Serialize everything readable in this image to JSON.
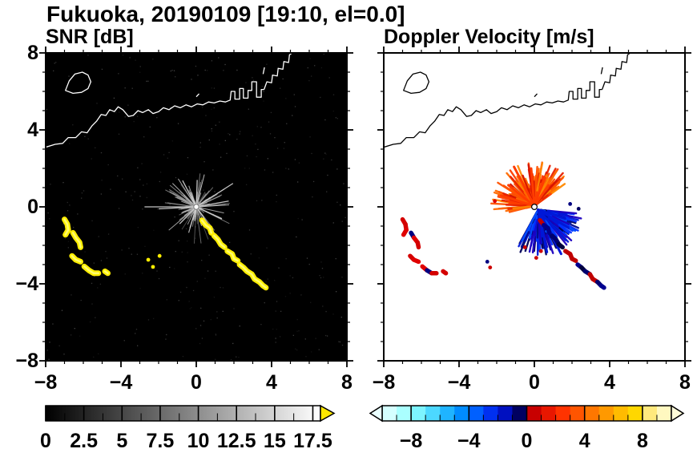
{
  "title": "Fukuoka, 20190109 [19:10, el=0.0]",
  "panels": {
    "snr": {
      "label": "SNR [dB]",
      "bg": "#000000",
      "coast_color": "#ffffff"
    },
    "doppler": {
      "label": "Doppler Velocity [m/s]",
      "bg": "#ffffff",
      "coast_color": "#000000"
    }
  },
  "axes": {
    "range": [
      -8,
      8
    ],
    "major_ticks": [
      -8,
      -4,
      0,
      4,
      8
    ],
    "minor_step": 1,
    "xtick_labels": [
      "−8",
      "−4",
      "0",
      "4",
      "8"
    ],
    "xtick_values": [
      -8,
      -4,
      0,
      4,
      8
    ],
    "ytick_labels": [
      "8",
      "4",
      "0",
      "−4",
      "−8"
    ],
    "ytick_values": [
      8,
      4,
      0,
      -4,
      -8
    ]
  },
  "colorbars": {
    "snr": {
      "range": [
        0,
        18
      ],
      "minor_step": 1.25,
      "label_values": [
        0,
        2.5,
        5,
        7.5,
        10,
        12.5,
        15,
        17.5
      ],
      "labels": [
        "0",
        "2.5",
        "5",
        "7.5",
        "10",
        "12.5",
        "15",
        "17.5"
      ],
      "gradient_start": "#000000",
      "gradient_end": "#ffffff",
      "over_color": "#ffe800"
    },
    "doppler": {
      "range": [
        -10,
        10
      ],
      "minor_step": 1,
      "label_values": [
        -8,
        -4,
        0,
        4,
        8
      ],
      "labels": [
        "−8",
        "−4",
        "0",
        "4",
        "8"
      ],
      "segments": [
        "#d5ffff",
        "#aaffff",
        "#7df4ff",
        "#4cd8ff",
        "#1fb4ff",
        "#008cff",
        "#0060ff",
        "#0030f0",
        "#0010c0",
        "#000060",
        "#c80000",
        "#e81700",
        "#ff3300",
        "#ff5500",
        "#ff7700",
        "#ff9900",
        "#ffbb00",
        "#ffd700",
        "#ffe97d",
        "#fff8c0"
      ],
      "under_color": "#eaffff",
      "over_color": "#fffbd8"
    }
  },
  "chart_data": {
    "type": "radar-ppi-pair",
    "site": "Fukuoka",
    "datetime": "20190109 19:10",
    "elevation_deg": 0.0,
    "panels": [
      {
        "type": "heatmap",
        "title": "SNR [dB]",
        "xlim": [
          -8,
          8
        ],
        "ylim": [
          -8,
          8
        ],
        "xticks": [
          -8,
          -4,
          0,
          4,
          8
        ],
        "yticks": [
          -8,
          -4,
          0,
          4,
          8
        ],
        "background": "#000000",
        "colorbar": {
          "label": "SNR [dB]",
          "range": [
            0,
            17.5
          ],
          "ticks": [
            0,
            2.5,
            5,
            7.5,
            10,
            12.5,
            15,
            17.5
          ],
          "scale": "grayscale, yellow above max"
        },
        "radar_origin": [
          0,
          0
        ],
        "noise": {
          "seed": 7,
          "count": 380
        },
        "rays": {
          "seed": 11,
          "count": 175,
          "len": [
            0.18,
            2.0
          ],
          "pow": 2.2,
          "long_spokes": [
            [
              180,
              2.75
            ],
            [
              32,
              2.3
            ],
            [
              10,
              1.75
            ],
            [
              305,
              1.9
            ],
            [
              335,
              1.5
            ],
            [
              225,
              1.25
            ],
            [
              88,
              1.4
            ],
            [
              118,
              1.55
            ],
            [
              253,
              1.15
            ],
            [
              183,
              2.0
            ]
          ]
        },
        "clutter_color": "#ffee00",
        "clutter_core_color": "#ffff88",
        "clutter_specks": [
          [
            -2.55,
            -2.75
          ],
          [
            -2.3,
            -3.12
          ],
          [
            -1.95,
            -2.55
          ]
        ]
      },
      {
        "type": "heatmap",
        "title": "Doppler Velocity [m/s]",
        "xlim": [
          -8,
          8
        ],
        "ylim": [
          -8,
          8
        ],
        "xticks": [
          -8,
          -4,
          0,
          4,
          8
        ],
        "yticks": [
          -8,
          -4,
          0,
          4,
          8
        ],
        "background": "#ffffff",
        "colorbar": {
          "label": "Doppler Velocity [m/s]",
          "range": [
            -10,
            10
          ],
          "ticks": [
            -8,
            -4,
            0,
            4,
            8
          ],
          "scale": "cyan-blue toward, red-yellow away"
        },
        "radar_origin": [
          0,
          0
        ],
        "away_fan": {
          "seed": 5,
          "count": 330,
          "origin": [
            0,
            0.05
          ],
          "angle_deg": [
            35,
            195
          ],
          "len": [
            0.22,
            2.3
          ],
          "pow": 1.7,
          "colors": [
            "#ff3c00",
            "#ff6a00",
            "#e82200",
            "#ff8800",
            "#d81400",
            "#ff5200"
          ],
          "spikes": [
            [
              118,
              2.3
            ],
            [
              95,
              1.95
            ],
            [
              142,
              1.75
            ],
            [
              70,
              1.55
            ],
            [
              163,
              1.85
            ],
            [
              55,
              1.3
            ]
          ]
        },
        "toward_fan": {
          "seed": 9,
          "count": 380,
          "origin": [
            0.2,
            -0.15
          ],
          "angle_deg": [
            -120,
            -5
          ],
          "len": [
            0.22,
            2.4
          ],
          "pow": 1.7,
          "colors": [
            "#0018d8",
            "#0030ff",
            "#000a8c",
            "#0050ff",
            "#00005a",
            "#1c00c0"
          ],
          "spikes": [
            [
              -62,
              2.6
            ],
            [
              -47,
              2.15
            ],
            [
              -30,
              1.85
            ],
            [
              -78,
              2.25
            ],
            [
              -18,
              1.5
            ]
          ]
        },
        "clutter_left_palette": [
          "#d40000",
          "#000080",
          "#e00000",
          "#b00000"
        ],
        "clutter_main_palette": [
          "#000070",
          "#000040",
          "#c00000",
          "#000090"
        ],
        "extra_specks": [
          [
            0.35,
            -2.3,
            "#cc0000"
          ],
          [
            0.1,
            -2.65,
            "#cc0000"
          ],
          [
            -0.5,
            -2.1,
            "#cc0000"
          ],
          [
            1.9,
            0.15,
            "#000080"
          ],
          [
            2.35,
            -0.1,
            "#000060"
          ],
          [
            -2.1,
            0.3,
            "#dd0000"
          ],
          [
            -2.5,
            -2.85,
            "#000080"
          ],
          [
            -2.35,
            -3.15,
            "#cc0000"
          ]
        ]
      }
    ],
    "coastline": {
      "segments": [
        [
          [
            -8,
            3.1
          ],
          [
            -7.5,
            3.25
          ],
          [
            -7.1,
            3.3
          ],
          [
            -6.8,
            3.6
          ],
          [
            -6.4,
            3.6
          ],
          [
            -6.1,
            3.9
          ],
          [
            -5.8,
            3.85
          ],
          [
            -5.55,
            4.2
          ],
          [
            -5.3,
            4.45
          ],
          [
            -5.05,
            4.8
          ],
          [
            -4.8,
            4.75
          ],
          [
            -4.6,
            5.05
          ],
          [
            -4.35,
            4.95
          ],
          [
            -4.15,
            5.2
          ],
          [
            -3.9,
            5.05
          ],
          [
            -3.6,
            4.7
          ],
          [
            -3.35,
            4.75
          ],
          [
            -3.1,
            5.0
          ],
          [
            -2.85,
            4.9
          ],
          [
            -2.55,
            5.05
          ],
          [
            -2.3,
            4.85
          ],
          [
            -2.0,
            4.95
          ],
          [
            -1.75,
            5.15
          ],
          [
            -1.45,
            5.05
          ],
          [
            -1.15,
            5.25
          ],
          [
            -0.85,
            5.15
          ],
          [
            -0.55,
            5.3
          ],
          [
            -0.25,
            5.2
          ],
          [
            0.05,
            5.35
          ],
          [
            0.35,
            5.3
          ],
          [
            0.65,
            5.45
          ],
          [
            0.95,
            5.4
          ],
          [
            1.25,
            5.5
          ],
          [
            1.55,
            5.45
          ],
          [
            1.8,
            5.55
          ],
          [
            1.85,
            6.0
          ],
          [
            2.05,
            6.0
          ],
          [
            2.05,
            5.6
          ],
          [
            2.3,
            5.6
          ],
          [
            2.3,
            6.15
          ],
          [
            2.5,
            6.15
          ],
          [
            2.5,
            5.65
          ],
          [
            2.75,
            5.65
          ],
          [
            2.75,
            6.05
          ],
          [
            2.95,
            6.05
          ],
          [
            2.95,
            6.5
          ],
          [
            3.2,
            6.5
          ],
          [
            3.2,
            5.7
          ],
          [
            3.45,
            5.7
          ],
          [
            3.45,
            6.1
          ],
          [
            3.6,
            6.1
          ]
        ],
        [
          [
            3.6,
            6.1
          ],
          [
            3.75,
            6.5
          ],
          [
            4.0,
            6.45
          ],
          [
            4.05,
            6.85
          ],
          [
            4.3,
            6.8
          ],
          [
            4.35,
            7.2
          ],
          [
            4.6,
            7.15
          ],
          [
            4.65,
            7.55
          ],
          [
            4.9,
            7.5
          ],
          [
            4.95,
            7.9
          ],
          [
            5.1,
            8.0
          ]
        ],
        [
          [
            0.0,
            5.72
          ],
          [
            0.15,
            5.88
          ]
        ],
        [
          [
            3.55,
            6.9
          ],
          [
            3.62,
            7.25
          ]
        ]
      ],
      "islands": [
        [
          [
            -6.95,
            6.05
          ],
          [
            -6.75,
            6.55
          ],
          [
            -6.45,
            6.9
          ],
          [
            -6.05,
            7.0
          ],
          [
            -5.75,
            6.85
          ],
          [
            -5.6,
            6.5
          ],
          [
            -5.75,
            6.15
          ],
          [
            -6.1,
            5.95
          ],
          [
            -6.55,
            5.9
          ]
        ]
      ]
    },
    "clutter_arcs": {
      "left_cluster": [
        [
          [
            -7.0,
            -0.65
          ],
          [
            -6.85,
            -0.9
          ],
          [
            -6.8,
            -1.2
          ],
          [
            -6.95,
            -1.45
          ]
        ],
        [
          [
            -6.55,
            -1.35
          ],
          [
            -6.4,
            -1.6
          ],
          [
            -6.2,
            -1.85
          ],
          [
            -6.15,
            -2.1
          ]
        ],
        [
          [
            -6.6,
            -2.55
          ],
          [
            -6.4,
            -2.75
          ],
          [
            -6.15,
            -2.85
          ]
        ],
        [
          [
            -5.95,
            -3.1
          ],
          [
            -5.7,
            -3.3
          ],
          [
            -5.45,
            -3.45
          ],
          [
            -5.2,
            -3.45
          ]
        ],
        [
          [
            -4.85,
            -3.35
          ],
          [
            -4.7,
            -3.45
          ]
        ]
      ],
      "main_chain": [
        [
          [
            0.3,
            -0.7
          ],
          [
            0.5,
            -0.95
          ],
          [
            0.72,
            -1.1
          ],
          [
            0.8,
            -1.35
          ]
        ],
        [
          [
            0.95,
            -1.5
          ],
          [
            1.15,
            -1.7
          ],
          [
            1.3,
            -1.95
          ],
          [
            1.5,
            -2.1
          ]
        ],
        [
          [
            1.65,
            -2.3
          ],
          [
            1.9,
            -2.45
          ],
          [
            2.0,
            -2.7
          ],
          [
            2.2,
            -2.8
          ]
        ],
        [
          [
            2.3,
            -3.0
          ],
          [
            2.5,
            -3.15
          ],
          [
            2.7,
            -3.35
          ],
          [
            2.95,
            -3.5
          ],
          [
            3.1,
            -3.75
          ],
          [
            3.35,
            -3.9
          ],
          [
            3.55,
            -4.1
          ],
          [
            3.7,
            -4.2
          ]
        ]
      ]
    }
  }
}
